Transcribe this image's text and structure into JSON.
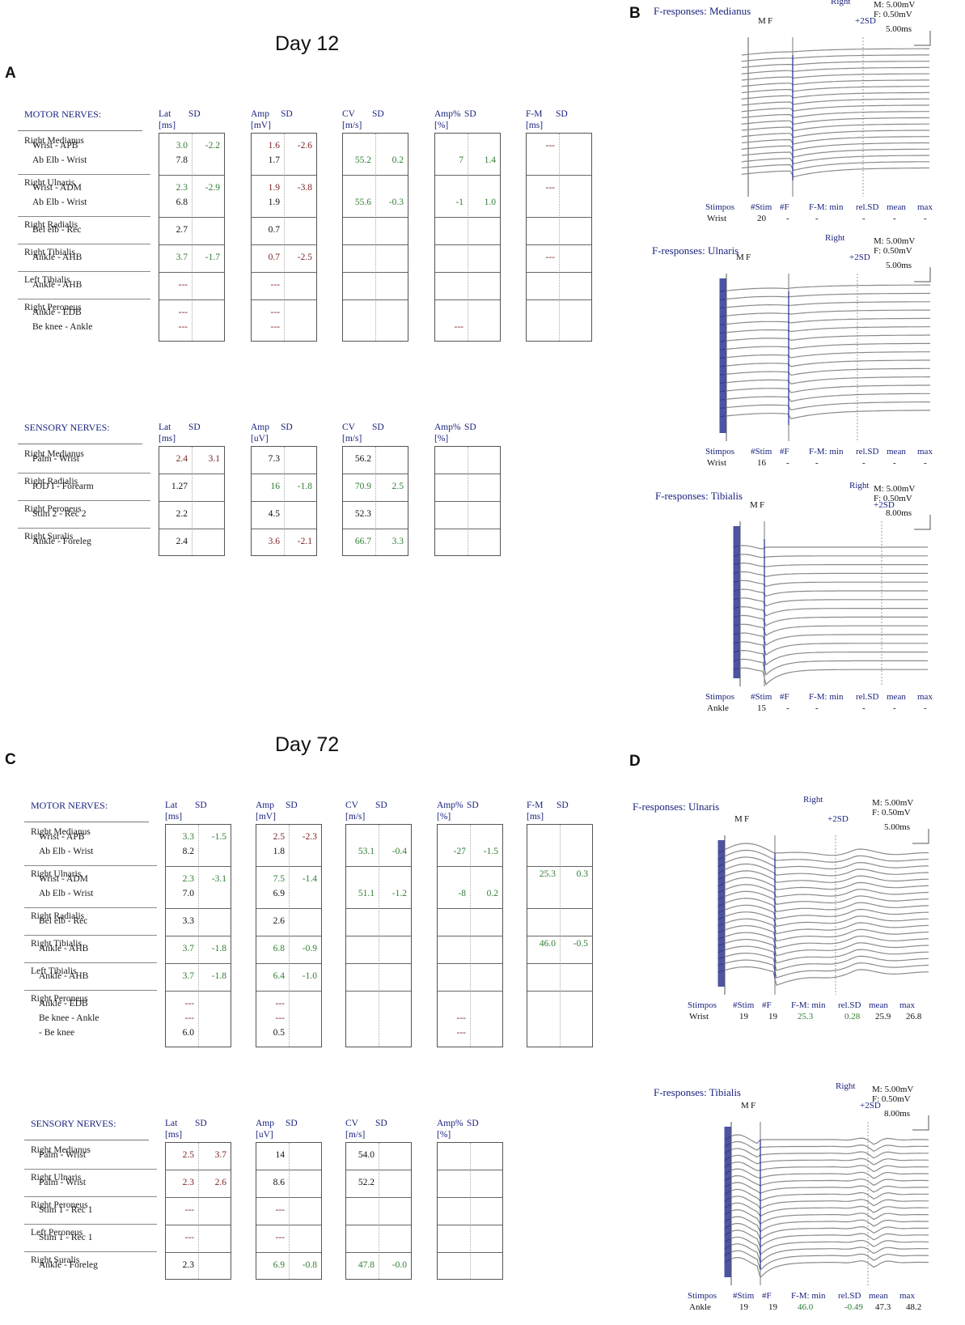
{
  "figure": {
    "day12_title": "Day 12",
    "day72_title": "Day 72",
    "panel_letters": [
      "A",
      "B",
      "C",
      "D"
    ]
  },
  "headers": {
    "lat": "Lat",
    "lat_unit": "[ms]",
    "amp": "Amp",
    "amp_motor_unit": "[mV]",
    "amp_sensory_unit": "[uV]",
    "cv": "CV",
    "cv_unit": "[m/s]",
    "amp_pct": "Amp%",
    "amp_pct_unit": "[%]",
    "fm": "F-M",
    "fm_unit": "[ms]",
    "sd": "SD",
    "motor": "MOTOR NERVES:",
    "sensory": "SENSORY NERVES:"
  },
  "colors": {
    "green": "#2e7d32",
    "red": "#7b1f1f",
    "navy": "#1a237e",
    "trace": "#8a8a8a",
    "stim": "#1f2a8c"
  },
  "day12_motor": [
    {
      "nerve": "Right Medianus",
      "rows": [
        {
          "seg": "Wrist - APB",
          "lat": "3.0",
          "lat_sd": "-2.2",
          "amp": "1.6",
          "amp_sd": "-2.6",
          "fm": "---"
        },
        {
          "seg": "Ab Elb - Wrist",
          "lat": "7.8",
          "amp": "1.7",
          "cv": "55.2",
          "cv_sd": "0.2",
          "ap": "7",
          "ap_sd": "1.4"
        }
      ]
    },
    {
      "nerve": "Right Ulnaris",
      "rows": [
        {
          "seg": "Wrist - ADM",
          "lat": "2.3",
          "lat_sd": "-2.9",
          "amp": "1.9",
          "amp_sd": "-3.8",
          "fm": "---"
        },
        {
          "seg": "Ab Elb - Wrist",
          "lat": "6.8",
          "amp": "1.9",
          "cv": "55.6",
          "cv_sd": "-0.3",
          "ap": "-1",
          "ap_sd": "1.0"
        }
      ]
    },
    {
      "nerve": "Right Radialis",
      "rows": [
        {
          "seg": "Bel elb - Rec",
          "lat": "2.7",
          "amp": "0.7"
        }
      ]
    },
    {
      "nerve": "Right Tibialis",
      "rows": [
        {
          "seg": "Ankle - AHB",
          "lat": "3.7",
          "lat_sd": "-1.7",
          "amp": "0.7",
          "amp_sd": "-2.5",
          "fm": "---"
        }
      ]
    },
    {
      "nerve": "Left  Tibialis",
      "rows": [
        {
          "seg": "Ankle - AHB",
          "lat": "---",
          "amp": "---"
        }
      ]
    },
    {
      "nerve": "Right Peroneus",
      "rows": [
        {
          "seg": "Ankle - EDB",
          "lat": "---",
          "amp": "---"
        },
        {
          "seg": "Be knee - Ankle",
          "lat": "---",
          "amp": "---",
          "ap": "---"
        }
      ]
    }
  ],
  "day12_sensory": [
    {
      "nerve": "Right Medianus",
      "rows": [
        {
          "seg": "Palm - Wrist",
          "lat": "2.4",
          "lat_sd": "3.1",
          "amp": "7.3",
          "cv": "56.2"
        }
      ]
    },
    {
      "nerve": "Right Radialis",
      "rows": [
        {
          "seg": "IOD I - Forearm",
          "lat": "1.27",
          "amp": "16",
          "amp_sd": "-1.8",
          "cv": "70.9",
          "cv_sd": "2.5"
        }
      ]
    },
    {
      "nerve": "Right Peroneus",
      "rows": [
        {
          "seg": "Stim  2 - Rec  2",
          "lat": "2.2",
          "amp": "4.5",
          "cv": "52.3"
        }
      ]
    },
    {
      "nerve": "Right Suralis",
      "rows": [
        {
          "seg": "Ankle - Foreleg",
          "lat": "2.4",
          "amp": "3.6",
          "amp_sd": "-2.1",
          "cv": "66.7",
          "cv_sd": "3.3"
        }
      ]
    }
  ],
  "day72_motor": [
    {
      "nerve": "Right Medianus",
      "rows": [
        {
          "seg": "Wrist - APB",
          "lat": "3.3",
          "lat_sd": "-1.5",
          "amp": "2.5",
          "amp_sd": "-2.3"
        },
        {
          "seg": "Ab Elb - Wrist",
          "lat": "8.2",
          "amp": "1.8",
          "cv": "53.1",
          "cv_sd": "-0.4",
          "ap": "-27",
          "ap_sd": "-1.5"
        }
      ]
    },
    {
      "nerve": "Right Ulnaris",
      "rows": [
        {
          "seg": "Wrist - ADM",
          "lat": "2.3",
          "lat_sd": "-3.1",
          "amp": "7.5",
          "amp_sd": "-1.4"
        },
        {
          "seg": "Ab Elb - Wrist",
          "lat": "7.0",
          "amp": "6.9",
          "cv": "51.1",
          "cv_sd": "-1.2",
          "ap": "-8",
          "ap_sd": "0.2"
        }
      ],
      "fm": "25.3",
      "fm_sd": "0.3"
    },
    {
      "nerve": "Right Radialis",
      "rows": [
        {
          "seg": "Bel elb - Rec",
          "lat": "3.3",
          "amp": "2.6"
        }
      ]
    },
    {
      "nerve": "Right Tibialis",
      "rows": [
        {
          "seg": "Ankle - AHB",
          "lat": "3.7",
          "lat_sd": "-1.8",
          "amp": "6.8",
          "amp_sd": "-0.9"
        }
      ],
      "fm": "46.0",
      "fm_sd": "-0.5"
    },
    {
      "nerve": "Left  Tibialis",
      "rows": [
        {
          "seg": "Ankle - AHB",
          "lat": "3.7",
          "lat_sd": "-1.8",
          "amp": "6.4",
          "amp_sd": "-1.0"
        }
      ]
    },
    {
      "nerve": "Right Peroneus",
      "rows": [
        {
          "seg": "Ankle - EDB",
          "lat": "---",
          "amp": "---"
        },
        {
          "seg": "Be knee - Ankle",
          "lat": "---",
          "amp": "---",
          "ap": "---"
        },
        {
          "seg": " - Be knee",
          "lat": "6.0",
          "amp": "0.5",
          "ap": "---"
        }
      ]
    }
  ],
  "day72_sensory": [
    {
      "nerve": "Right Medianus",
      "rows": [
        {
          "seg": "Palm - Wrist",
          "lat": "2.5",
          "lat_sd": "3.7",
          "amp": "14",
          "cv": "54.0"
        }
      ]
    },
    {
      "nerve": "Right Ulnaris",
      "rows": [
        {
          "seg": "Palm - Wrist",
          "lat": "2.3",
          "lat_sd": "2.6",
          "amp": "8.6",
          "cv": "52.2"
        }
      ]
    },
    {
      "nerve": "Right Peroneus",
      "rows": [
        {
          "seg": "Stim  1 - Rec  1",
          "lat": "---",
          "amp": "---"
        }
      ]
    },
    {
      "nerve": "Left  Peroneus",
      "rows": [
        {
          "seg": "Stim  1 - Rec  1",
          "lat": "---",
          "amp": "---"
        }
      ]
    },
    {
      "nerve": "Right Suralis",
      "rows": [
        {
          "seg": "Ankle - Foreleg",
          "lat": "2.3",
          "amp": "6.9",
          "amp_sd": "-0.8",
          "cv": "47.8",
          "cv_sd": "-0.0"
        }
      ]
    }
  ],
  "f_responses": [
    {
      "id": "b_med",
      "title": "F-responses: Medianus",
      "side": "Right",
      "scale_m": "M: 5.00mV",
      "scale_f": "F:  0.50mV",
      "scale_t": "5.00ms",
      "marker_m": "M",
      "marker_f": "F",
      "marker_sd": "+2SD",
      "foot_headers": [
        "Stimpos",
        "#Stim",
        "#F",
        "F-M: min",
        "rel.SD",
        "mean",
        "max"
      ],
      "foot_values": [
        "Wrist",
        "20",
        "-",
        "-",
        "-",
        "-",
        "-"
      ]
    },
    {
      "id": "b_uln",
      "title": "F-responses: Ulnaris",
      "side": "Right",
      "scale_m": "M: 5.00mV",
      "scale_f": "F:  0.50mV",
      "scale_t": "5.00ms",
      "marker_m": "M",
      "marker_f": "F",
      "marker_sd": "+2SD",
      "foot_headers": [
        "Stimpos",
        "#Stim",
        "#F",
        "F-M: min",
        "rel.SD",
        "mean",
        "max"
      ],
      "foot_values": [
        "Wrist",
        "16",
        "-",
        "-",
        "-",
        "-",
        "-"
      ]
    },
    {
      "id": "b_tib",
      "title": "F-responses: Tibialis",
      "side": "Right",
      "scale_m": "M: 5.00mV",
      "scale_f": "F:  0.50mV",
      "scale_t": "8.00ms",
      "marker_m": "M",
      "marker_f": "F",
      "marker_sd": "+2SD",
      "foot_headers": [
        "Stimpos",
        "#Stim",
        "#F",
        "F-M: min",
        "rel.SD",
        "mean",
        "max"
      ],
      "foot_values": [
        "Ankle",
        "15",
        "-",
        "-",
        "-",
        "-",
        "-"
      ]
    },
    {
      "id": "d_uln",
      "title": "F-responses: Ulnaris",
      "side": "Right",
      "scale_m": "M: 5.00mV",
      "scale_f": "F:  0.50mV",
      "scale_t": "5.00ms",
      "marker_m": "M",
      "marker_f": "F",
      "marker_sd": "+2SD",
      "foot_headers": [
        "Stimpos",
        "#Stim",
        "#F",
        "F-M: min",
        "rel.SD",
        "mean",
        "max"
      ],
      "foot_values": [
        "Wrist",
        "19",
        "19",
        "25.3",
        "0.28",
        "25.9",
        "26.8"
      ]
    },
    {
      "id": "d_tib",
      "title": "F-responses: Tibialis",
      "side": "Right",
      "scale_m": "M: 5.00mV",
      "scale_f": "F:  0.50mV",
      "scale_t": "8.00ms",
      "marker_m": "M",
      "marker_f": "F",
      "marker_sd": "+2SD",
      "foot_headers": [
        "Stimpos",
        "#Stim",
        "#F",
        "F-M: min",
        "rel.SD",
        "mean",
        "max"
      ],
      "foot_values": [
        "Ankle",
        "19",
        "19",
        "46.0",
        "-0.49",
        "47.3",
        "48.2"
      ]
    }
  ]
}
